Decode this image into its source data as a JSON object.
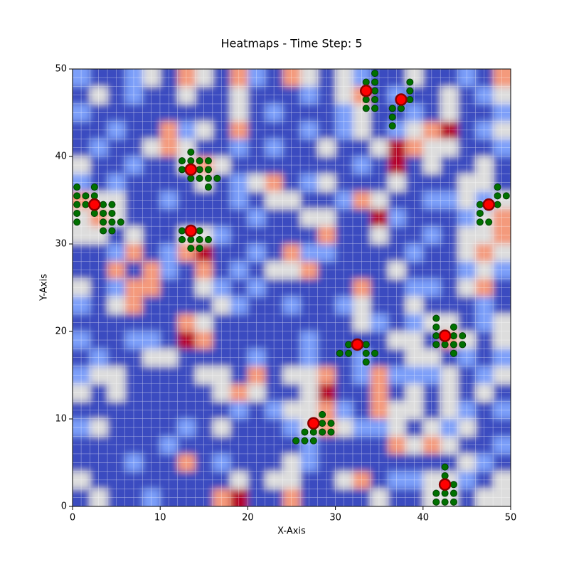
{
  "chart_data": {
    "type": "heatmap-scatter",
    "title": "Heatmaps - Time Step: 5",
    "x_label": "X-Axis",
    "y_label": "Y-Axis",
    "xlim": [
      0,
      50
    ],
    "ylim": [
      0,
      50
    ],
    "xticks": [
      0,
      10,
      20,
      30,
      40,
      50
    ],
    "yticks": [
      0,
      10,
      20,
      30,
      40,
      50
    ],
    "colormap": [
      "#3b4cc0",
      "#7b9ff9",
      "#dddddd",
      "#f49a7b",
      "#b40426"
    ],
    "z": [
      [
        1,
        0,
        0,
        1,
        2,
        0,
        3,
        2,
        0,
        3,
        1,
        0,
        3,
        2,
        0,
        2,
        1,
        0,
        0,
        2,
        0,
        0,
        1,
        0,
        3
      ],
      [
        0,
        2,
        0,
        1,
        0,
        0,
        2,
        0,
        0,
        2,
        0,
        0,
        0,
        1,
        0,
        2,
        3,
        0,
        1,
        0,
        0,
        2,
        0,
        1,
        2
      ],
      [
        1,
        0,
        0,
        0,
        0,
        0,
        0,
        0,
        0,
        2,
        0,
        1,
        0,
        0,
        0,
        1,
        2,
        0,
        0,
        1,
        0,
        2,
        0,
        0,
        1
      ],
      [
        0,
        0,
        1,
        0,
        0,
        3,
        1,
        2,
        0,
        3,
        0,
        0,
        0,
        1,
        0,
        1,
        2,
        0,
        1,
        2,
        3,
        4,
        0,
        1,
        2
      ],
      [
        0,
        1,
        0,
        0,
        2,
        3,
        2,
        0,
        0,
        1,
        0,
        1,
        0,
        0,
        2,
        0,
        0,
        2,
        4,
        3,
        2,
        2,
        0,
        0,
        1
      ],
      [
        2,
        0,
        0,
        1,
        0,
        0,
        2,
        3,
        2,
        0,
        0,
        0,
        0,
        0,
        0,
        0,
        1,
        0,
        4,
        0,
        2,
        0,
        0,
        2,
        0
      ],
      [
        1,
        0,
        1,
        0,
        0,
        0,
        0,
        2,
        0,
        1,
        2,
        3,
        0,
        1,
        2,
        0,
        0,
        0,
        2,
        0,
        0,
        0,
        2,
        2,
        0
      ],
      [
        3,
        2,
        2,
        0,
        0,
        1,
        0,
        0,
        0,
        1,
        0,
        2,
        2,
        0,
        0,
        1,
        3,
        2,
        0,
        0,
        1,
        1,
        2,
        1,
        2
      ],
      [
        2,
        3,
        2,
        0,
        0,
        0,
        0,
        0,
        0,
        0,
        1,
        0,
        0,
        2,
        2,
        0,
        0,
        4,
        1,
        0,
        0,
        0,
        1,
        2,
        3
      ],
      [
        2,
        2,
        0,
        2,
        0,
        0,
        2,
        2,
        1,
        0,
        0,
        0,
        0,
        0,
        3,
        0,
        0,
        2,
        0,
        0,
        1,
        0,
        2,
        2,
        3
      ],
      [
        0,
        0,
        1,
        3,
        0,
        1,
        3,
        4,
        0,
        0,
        1,
        0,
        3,
        1,
        1,
        0,
        0,
        0,
        0,
        1,
        0,
        0,
        2,
        3,
        2
      ],
      [
        0,
        0,
        3,
        0,
        3,
        1,
        0,
        3,
        0,
        1,
        0,
        2,
        2,
        3,
        0,
        0,
        0,
        0,
        2,
        0,
        0,
        0,
        1,
        2,
        1
      ],
      [
        2,
        0,
        1,
        3,
        3,
        0,
        0,
        2,
        1,
        0,
        1,
        0,
        0,
        0,
        0,
        0,
        3,
        0,
        0,
        1,
        1,
        0,
        2,
        3,
        0
      ],
      [
        1,
        0,
        2,
        3,
        0,
        0,
        0,
        0,
        2,
        1,
        0,
        0,
        1,
        0,
        0,
        1,
        2,
        0,
        0,
        2,
        0,
        0,
        0,
        1,
        0
      ],
      [
        0,
        0,
        0,
        0,
        0,
        0,
        3,
        2,
        0,
        0,
        0,
        0,
        0,
        0,
        0,
        0,
        2,
        1,
        0,
        1,
        2,
        2,
        0,
        1,
        2
      ],
      [
        1,
        0,
        0,
        1,
        1,
        0,
        4,
        3,
        0,
        0,
        0,
        0,
        0,
        1,
        0,
        0,
        0,
        0,
        2,
        2,
        0,
        3,
        2,
        0,
        2
      ],
      [
        0,
        1,
        0,
        0,
        2,
        2,
        0,
        0,
        0,
        0,
        1,
        0,
        0,
        1,
        0,
        0,
        1,
        0,
        0,
        2,
        2,
        0,
        1,
        0,
        1
      ],
      [
        1,
        2,
        2,
        0,
        0,
        0,
        0,
        2,
        2,
        0,
        3,
        0,
        2,
        2,
        3,
        0,
        1,
        3,
        1,
        1,
        1,
        2,
        0,
        1,
        2
      ],
      [
        2,
        0,
        2,
        0,
        0,
        0,
        0,
        0,
        2,
        3,
        2,
        0,
        0,
        2,
        4,
        0,
        0,
        3,
        0,
        2,
        0,
        2,
        0,
        2,
        0
      ],
      [
        0,
        0,
        0,
        0,
        0,
        0,
        0,
        0,
        0,
        1,
        0,
        1,
        2,
        2,
        3,
        1,
        0,
        3,
        2,
        2,
        0,
        2,
        1,
        0,
        1
      ],
      [
        1,
        2,
        0,
        0,
        0,
        0,
        1,
        0,
        2,
        0,
        0,
        0,
        1,
        2,
        3,
        2,
        1,
        1,
        2,
        0,
        2,
        1,
        2,
        0,
        0
      ],
      [
        0,
        0,
        0,
        0,
        0,
        1,
        0,
        0,
        0,
        0,
        0,
        0,
        0,
        1,
        0,
        0,
        0,
        0,
        3,
        2,
        3,
        2,
        0,
        0,
        1
      ],
      [
        0,
        0,
        0,
        1,
        0,
        0,
        3,
        0,
        1,
        0,
        0,
        0,
        2,
        1,
        0,
        0,
        0,
        0,
        0,
        0,
        0,
        0,
        2,
        1,
        0
      ],
      [
        2,
        0,
        0,
        0,
        0,
        0,
        0,
        0,
        0,
        2,
        0,
        2,
        2,
        0,
        0,
        2,
        3,
        0,
        1,
        1,
        2,
        2,
        1,
        0,
        2
      ],
      [
        0,
        2,
        0,
        0,
        1,
        0,
        0,
        0,
        3,
        4,
        0,
        0,
        3,
        0,
        0,
        0,
        0,
        2,
        0,
        0,
        2,
        2,
        0,
        2,
        2
      ]
    ],
    "series": [
      {
        "color": "#007000",
        "x": [
          0.5,
          0.5,
          1.5,
          2.5,
          2.5,
          0.5,
          1.5,
          3.5,
          4.5,
          0.5,
          2.5,
          3.5,
          4.5,
          0.5,
          3.5,
          4.5,
          5.5,
          3.5,
          4.5,
          13.5,
          12.5,
          13.5,
          14.5,
          15.5,
          12.5,
          14.5,
          15.5,
          13.5,
          14.5,
          15.5,
          16.5,
          15.5,
          12.5,
          14.5,
          12.5,
          13.5,
          14.5,
          15.5,
          13.5,
          14.5,
          34.5,
          33.5,
          34.5,
          34.5,
          33.5,
          34.5,
          33.5,
          34.5,
          38.5,
          38.5,
          38.5,
          36.5,
          37.5,
          36.5,
          36.5,
          48.5,
          48.5,
          49.5,
          46.5,
          48.5,
          46.5,
          46.5,
          47.5,
          31.5,
          33.5,
          30.5,
          31.5,
          33.5,
          34.5,
          33.5,
          41.5,
          41.5,
          43.5,
          41.5,
          43.5,
          44.5,
          41.5,
          42.5,
          43.5,
          44.5,
          43.5,
          28.5,
          28.5,
          29.5,
          26.5,
          27.5,
          28.5,
          29.5,
          25.5,
          26.5,
          27.5,
          42.5,
          42.5,
          43.5,
          41.5,
          42.5,
          43.5,
          41.5,
          42.5,
          43.5
        ],
        "values": [
          36.5,
          35.5,
          35.5,
          36.5,
          35.5,
          34.5,
          34.5,
          34.5,
          34.5,
          33.5,
          33.5,
          33.5,
          33.5,
          32.5,
          32.5,
          32.5,
          32.5,
          31.5,
          31.5,
          40.5,
          39.5,
          39.5,
          39.5,
          39.5,
          38.5,
          38.5,
          38.5,
          37.5,
          37.5,
          37.5,
          37.5,
          36.5,
          31.5,
          31.5,
          30.5,
          30.5,
          30.5,
          30.5,
          29.5,
          29.5,
          49.5,
          48.5,
          48.5,
          47.5,
          46.5,
          46.5,
          45.5,
          45.5,
          48.5,
          47.5,
          46.5,
          45.5,
          45.5,
          44.5,
          43.5,
          36.5,
          35.5,
          35.5,
          34.5,
          34.5,
          33.5,
          32.5,
          32.5,
          18.5,
          18.5,
          17.5,
          17.5,
          17.5,
          17.5,
          16.5,
          21.5,
          20.5,
          20.5,
          19.5,
          19.5,
          19.5,
          18.5,
          18.5,
          18.5,
          18.5,
          17.5,
          10.5,
          9.5,
          9.5,
          8.5,
          8.5,
          8.5,
          8.5,
          7.5,
          7.5,
          7.5,
          4.5,
          3.5,
          2.5,
          1.5,
          1.5,
          1.5,
          0.5,
          0.5,
          0.5
        ]
      },
      {
        "color": "#ff0000",
        "x": [
          2.5,
          13.5,
          13.5,
          33.5,
          37.5,
          47.5,
          32.5,
          42.5,
          27.5,
          42.5
        ],
        "values": [
          34.5,
          38.5,
          31.5,
          47.5,
          46.5,
          34.5,
          18.5,
          19.5,
          9.5,
          2.5
        ]
      }
    ]
  }
}
